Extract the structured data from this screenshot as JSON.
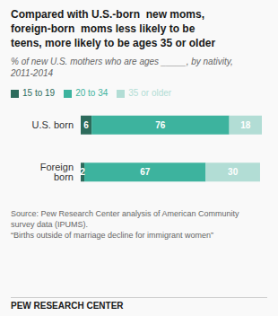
{
  "chart_data": {
    "type": "bar",
    "orientation": "horizontal",
    "stacked": true,
    "title": "Compared with U.S.-born  new moms,\nforeign-born  moms less likely to be\nteens, more likely to be ages 35 or older",
    "subtitle": "% of new U.S. mothers who are ages _____, by nativity,\n2011-2014",
    "categories": [
      "U.S. born",
      "Foreign born"
    ],
    "series": [
      {
        "name": "15 to 19",
        "color": "#2d6b5c",
        "values": [
          6,
          2
        ]
      },
      {
        "name": "20 to 34",
        "color": "#3db39e",
        "values": [
          76,
          67
        ]
      },
      {
        "name": "35 or older",
        "color": "#b2ddd5",
        "values": [
          18,
          30
        ]
      }
    ],
    "xlim": [
      0,
      100
    ],
    "data_labels": true,
    "tick_labels": "y",
    "grid": false,
    "legend": "upper left",
    "annotations": [
      "Source: Pew Research Center analysis of American Community\nsurvey data (IPUMS).\n“Births outside of marriage decline for immigrant women”",
      "PEW RESEARCH CENTER"
    ]
  }
}
